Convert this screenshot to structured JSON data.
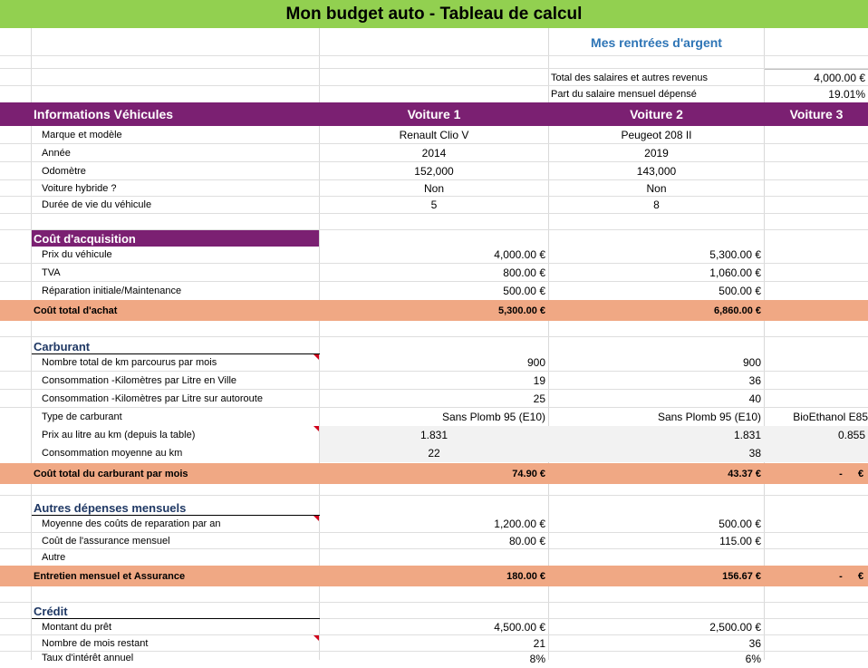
{
  "title": "Mon budget auto - Tableau de calcul",
  "income": {
    "heading": "Mes rentrées d'argent",
    "rows": [
      {
        "label": "Total des salaires et autres revenus",
        "value": "4,000.00 €"
      },
      {
        "label": "Part du salaire mensuel dépensé",
        "value": "19.01%"
      }
    ]
  },
  "vehicle_info": {
    "heading": "Informations Véhicules",
    "columns": [
      "Voiture 1",
      "Voiture 2",
      "Voiture 3"
    ],
    "rows": [
      {
        "label": "Marque et modèle",
        "values": [
          "Renault Clio V",
          "Peugeot 208 II",
          ""
        ]
      },
      {
        "label": "Année",
        "values": [
          "2014",
          "2019",
          ""
        ]
      },
      {
        "label": "Odomètre",
        "values": [
          "152,000",
          "143,000",
          ""
        ]
      },
      {
        "label": "Voiture hybride ?",
        "values": [
          "Non",
          "Non",
          ""
        ]
      },
      {
        "label": "Durée de vie du véhicule",
        "values": [
          "5",
          "8",
          ""
        ]
      }
    ]
  },
  "acquisition": {
    "heading": "Coût d'acquisition",
    "rows": [
      {
        "label": "Prix du véhicule",
        "values": [
          "4,000.00 €",
          "5,300.00 €",
          ""
        ]
      },
      {
        "label": "TVA",
        "values": [
          "800.00 €",
          "1,060.00 €",
          ""
        ]
      },
      {
        "label": "Réparation initiale/Maintenance",
        "values": [
          "500.00 €",
          "500.00 €",
          ""
        ]
      }
    ],
    "total": {
      "label": "Coût total d'achat",
      "values": [
        "5,300.00 €",
        "6,860.00 €",
        ""
      ]
    }
  },
  "fuel": {
    "heading": "Carburant",
    "rows": [
      {
        "label": "Nombre total de km parcourus par mois",
        "values": [
          "900",
          "900",
          ""
        ]
      },
      {
        "label": "Consommation -Kilomètres par Litre en Ville",
        "values": [
          "19",
          "36",
          ""
        ]
      },
      {
        "label": "Consommation -Kilomètres par Litre sur autoroute",
        "values": [
          "25",
          "40",
          ""
        ]
      },
      {
        "label": "Type de carburant",
        "values": [
          "Sans Plomb 95 (E10)",
          "Sans Plomb 95 (E10)",
          "BioEthanol E85"
        ]
      },
      {
        "label": "Prix au litre au km  (depuis la table)",
        "values": [
          "1.831",
          "1.831",
          "0.855"
        ]
      },
      {
        "label": "Consommation moyenne au km",
        "values": [
          "22",
          "38",
          ""
        ]
      }
    ],
    "total": {
      "label": "Coût total du carburant par mois",
      "values": [
        "74.90 €",
        "43.37 €",
        "-",
        "€"
      ]
    }
  },
  "other": {
    "heading": "Autres dépenses mensuels",
    "rows": [
      {
        "label": "Moyenne des coûts de reparation par an",
        "values": [
          "1,200.00 €",
          "500.00 €",
          ""
        ]
      },
      {
        "label": "Coût de l'assurance mensuel",
        "values": [
          "80.00 €",
          "115.00 €",
          ""
        ]
      },
      {
        "label": "Autre",
        "values": [
          "",
          "",
          ""
        ]
      }
    ],
    "total": {
      "label": "Entretien mensuel et Assurance",
      "values": [
        "180.00 €",
        "156.67 €",
        "-",
        "€"
      ]
    }
  },
  "credit": {
    "heading": "Crédit",
    "rows": [
      {
        "label": "Montant du prêt",
        "values": [
          "4,500.00 €",
          "2,500.00 €",
          ""
        ]
      },
      {
        "label": "Nombre de mois restant",
        "values": [
          "21",
          "36",
          ""
        ]
      },
      {
        "label": "Taux d'intérêt annuel",
        "values": [
          "8%",
          "6%",
          ""
        ]
      }
    ]
  },
  "colors": {
    "title_bg": "#92d050",
    "header_bg": "#7b2072",
    "total_bg": "#f0a884",
    "section_text": "#1f3864",
    "income_heading": "#2e75b6",
    "note_marker": "#d0021b"
  }
}
